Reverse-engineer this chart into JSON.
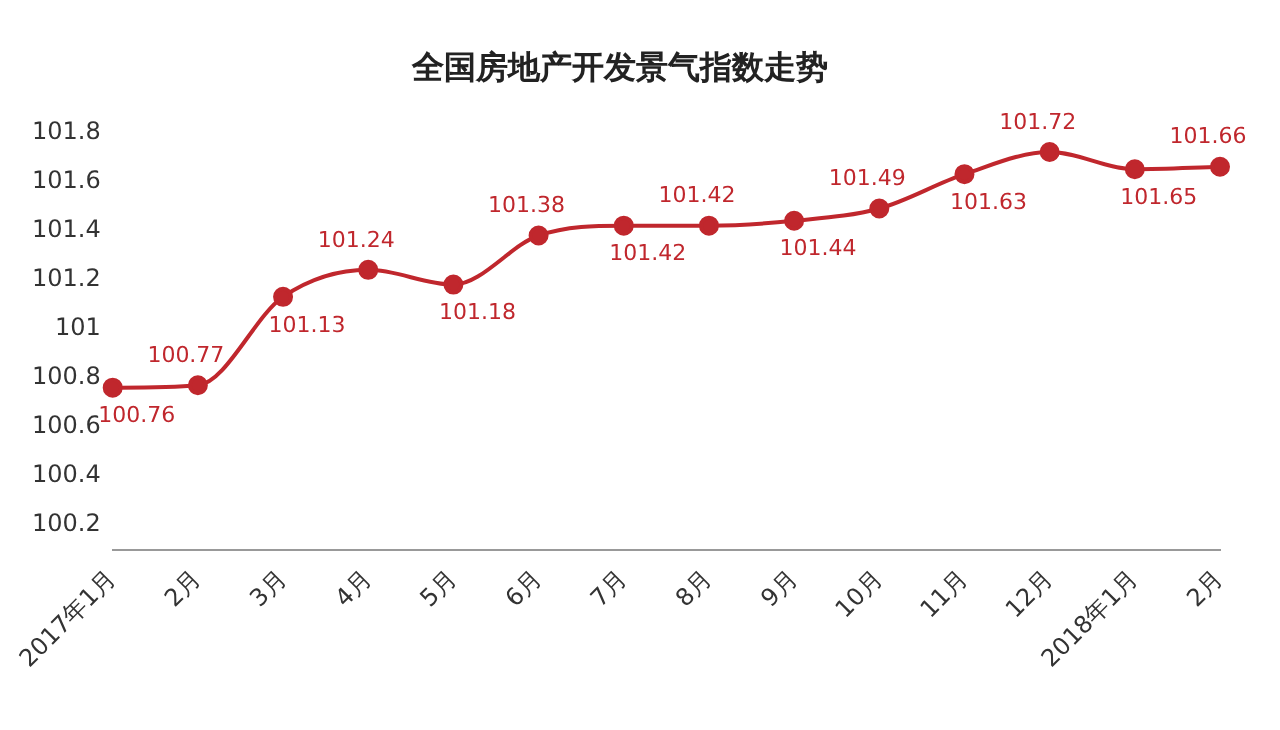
{
  "chart_data": {
    "type": "line",
    "title": "全国房地产开发景气指数走势",
    "categories": [
      "2017年1月",
      "2月",
      "3月",
      "4月",
      "5月",
      "6月",
      "7月",
      "8月",
      "9月",
      "10月",
      "11月",
      "12月",
      "2018年1月",
      "2月"
    ],
    "series": [
      {
        "color": "#c0272d",
        "values": [
          100.76,
          100.77,
          101.13,
          101.24,
          101.18,
          101.38,
          101.42,
          101.42,
          101.44,
          101.49,
          101.63,
          101.72,
          101.65,
          101.66
        ]
      }
    ],
    "ylim": [
      100.1,
      101.8
    ],
    "yticks": [
      100.2,
      100.4,
      100.6,
      100.8,
      101,
      101.2,
      101.4,
      101.6,
      101.8
    ],
    "grid": false,
    "legend": false,
    "marker": "circle",
    "line_style": "solid",
    "data_labels": true
  }
}
